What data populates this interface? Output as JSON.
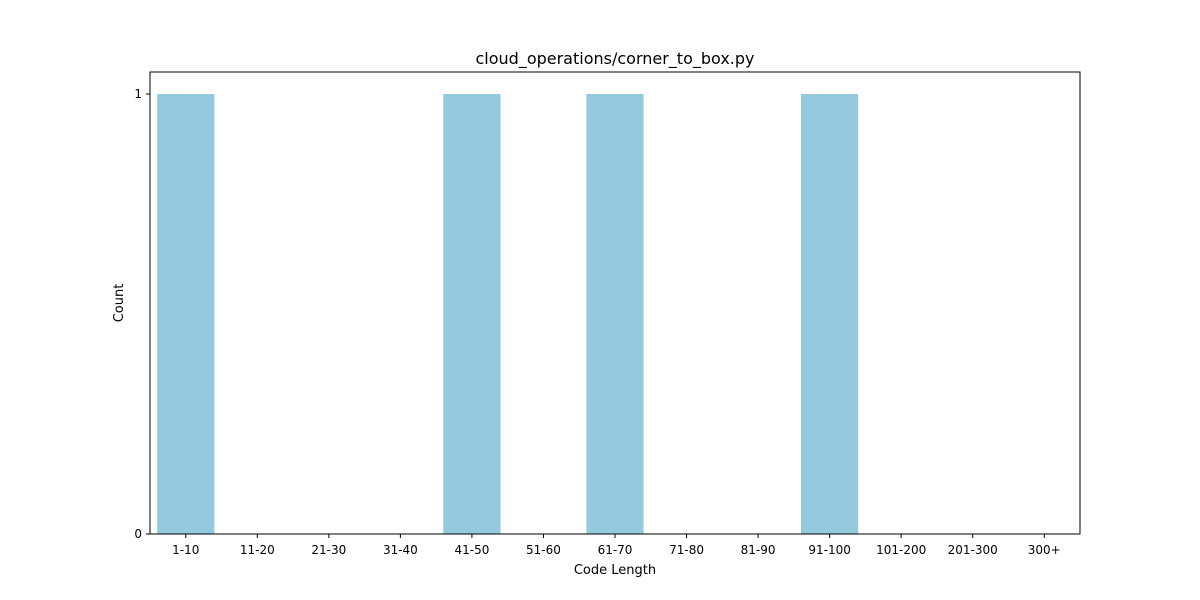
{
  "chart_data": {
    "type": "bar",
    "title": "cloud_operations/corner_to_box.py",
    "xlabel": "Code Length",
    "ylabel": "Count",
    "categories": [
      "1-10",
      "11-20",
      "21-30",
      "31-40",
      "41-50",
      "51-60",
      "61-70",
      "71-80",
      "81-90",
      "91-100",
      "101-200",
      "201-300",
      "300+"
    ],
    "values": [
      1,
      0,
      0,
      0,
      1,
      0,
      1,
      0,
      0,
      1,
      0,
      0,
      0
    ],
    "ylim": [
      0,
      1.05
    ],
    "yticks": [
      0,
      1
    ],
    "grid": false,
    "legend": "none",
    "bar_color": "#95c9dd"
  }
}
